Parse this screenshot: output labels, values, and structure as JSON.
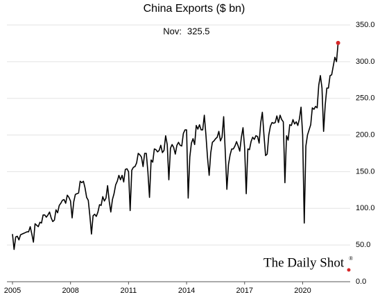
{
  "chart_data": {
    "type": "line",
    "title": "China Exports ($ bn)",
    "annotation_label": "Nov:",
    "source": "The Daily Shot",
    "source_mark": "®",
    "x": [
      2005,
      2005.083,
      2005.167,
      2005.25,
      2005.333,
      2005.417,
      2005.5,
      2005.583,
      2005.667,
      2005.75,
      2005.833,
      2005.917,
      2006,
      2006.083,
      2006.167,
      2006.25,
      2006.333,
      2006.417,
      2006.5,
      2006.583,
      2006.667,
      2006.75,
      2006.833,
      2006.917,
      2007,
      2007.083,
      2007.167,
      2007.25,
      2007.333,
      2007.417,
      2007.5,
      2007.583,
      2007.667,
      2007.75,
      2007.833,
      2007.917,
      2008,
      2008.083,
      2008.167,
      2008.25,
      2008.333,
      2008.417,
      2008.5,
      2008.583,
      2008.667,
      2008.75,
      2008.833,
      2008.917,
      2009,
      2009.083,
      2009.167,
      2009.25,
      2009.333,
      2009.417,
      2009.5,
      2009.583,
      2009.667,
      2009.75,
      2009.833,
      2009.917,
      2010,
      2010.083,
      2010.167,
      2010.25,
      2010.333,
      2010.417,
      2010.5,
      2010.583,
      2010.667,
      2010.75,
      2010.833,
      2010.917,
      2011,
      2011.083,
      2011.167,
      2011.25,
      2011.333,
      2011.417,
      2011.5,
      2011.583,
      2011.667,
      2011.75,
      2011.833,
      2011.917,
      2012,
      2012.083,
      2012.167,
      2012.25,
      2012.333,
      2012.417,
      2012.5,
      2012.583,
      2012.667,
      2012.75,
      2012.833,
      2012.917,
      2013,
      2013.083,
      2013.167,
      2013.25,
      2013.333,
      2013.417,
      2013.5,
      2013.583,
      2013.667,
      2013.75,
      2013.833,
      2013.917,
      2014,
      2014.083,
      2014.167,
      2014.25,
      2014.333,
      2014.417,
      2014.5,
      2014.583,
      2014.667,
      2014.75,
      2014.833,
      2014.917,
      2015,
      2015.083,
      2015.167,
      2015.25,
      2015.333,
      2015.417,
      2015.5,
      2015.583,
      2015.667,
      2015.75,
      2015.833,
      2015.917,
      2016,
      2016.083,
      2016.167,
      2016.25,
      2016.333,
      2016.417,
      2016.5,
      2016.583,
      2016.667,
      2016.75,
      2016.833,
      2016.917,
      2017,
      2017.083,
      2017.167,
      2017.25,
      2017.333,
      2017.417,
      2017.5,
      2017.583,
      2017.667,
      2017.75,
      2017.833,
      2017.917,
      2018,
      2018.083,
      2018.167,
      2018.25,
      2018.333,
      2018.417,
      2018.5,
      2018.583,
      2018.667,
      2018.75,
      2018.833,
      2018.917,
      2019,
      2019.083,
      2019.167,
      2019.25,
      2019.333,
      2019.417,
      2019.5,
      2019.583,
      2019.667,
      2019.75,
      2019.833,
      2019.917,
      2020,
      2020.083,
      2020.167,
      2020.25,
      2020.333,
      2020.417,
      2020.5,
      2020.583,
      2020.667,
      2020.75,
      2020.833,
      2020.917,
      2021,
      2021.083,
      2021.167,
      2021.25,
      2021.333,
      2021.417,
      2021.5,
      2021.583,
      2021.667,
      2021.75,
      2021.833
    ],
    "series": [
      {
        "name": "China Exports",
        "color": "#000000",
        "marker_color": "#d62728",
        "values": [
          65,
          44,
          61,
          62,
          57,
          64,
          65,
          66,
          67,
          68,
          68,
          75,
          65,
          54,
          79,
          77,
          75,
          81,
          80,
          91,
          91,
          88,
          91,
          95,
          87,
          82,
          84,
          98,
          94,
          104,
          107,
          111,
          112,
          107,
          118,
          115,
          110,
          87,
          109,
          119,
          120,
          121,
          137,
          135,
          137,
          128,
          115,
          111,
          90,
          65,
          90,
          92,
          89,
          95,
          105,
          104,
          116,
          110,
          114,
          131,
          110,
          95,
          112,
          120,
          132,
          137,
          145,
          139,
          145,
          136,
          153,
          154,
          150,
          97,
          152,
          156,
          157,
          162,
          175,
          173,
          170,
          157,
          175,
          175,
          150,
          115,
          166,
          163,
          181,
          180,
          177,
          179,
          186,
          176,
          179,
          199,
          187,
          139,
          182,
          187,
          183,
          174,
          186,
          190,
          186,
          185,
          202,
          207,
          207,
          114,
          170,
          189,
          195,
          187,
          213,
          208,
          214,
          207,
          207,
          227,
          200,
          169,
          145,
          176,
          190,
          192,
          195,
          197,
          205,
          192,
          197,
          225,
          177,
          126,
          160,
          173,
          181,
          181,
          185,
          191,
          185,
          178,
          197,
          210,
          183,
          120,
          181,
          180,
          191,
          197,
          194,
          199,
          198,
          189,
          217,
          231,
          200,
          172,
          174,
          200,
          212,
          217,
          216,
          217,
          226,
          217,
          227,
          221,
          218,
          135,
          199,
          193,
          214,
          213,
          221,
          215,
          218,
          213,
          222,
          238,
          200,
          80,
          185,
          200,
          207,
          214,
          237,
          235,
          239,
          237,
          268,
          281,
          264,
          205,
          241,
          264,
          264,
          281,
          282,
          294,
          306,
          300,
          325.5
        ]
      }
    ],
    "xlim": [
      2005,
      2022.6
    ],
    "xticks": [
      2005,
      2008,
      2011,
      2014,
      2017,
      2020
    ],
    "ylim": [
      0,
      350
    ],
    "yticks": [
      {
        "value": 0,
        "label": "0.0"
      },
      {
        "value": 50,
        "label": "50.0"
      },
      {
        "value": 100,
        "label": "100.0"
      },
      {
        "value": 150,
        "label": "150.0"
      },
      {
        "value": 200,
        "label": "200.0"
      },
      {
        "value": 250,
        "label": "250.0"
      },
      {
        "value": 300,
        "label": "300.0"
      },
      {
        "value": 350,
        "label": "350.0"
      }
    ],
    "grid": true
  }
}
